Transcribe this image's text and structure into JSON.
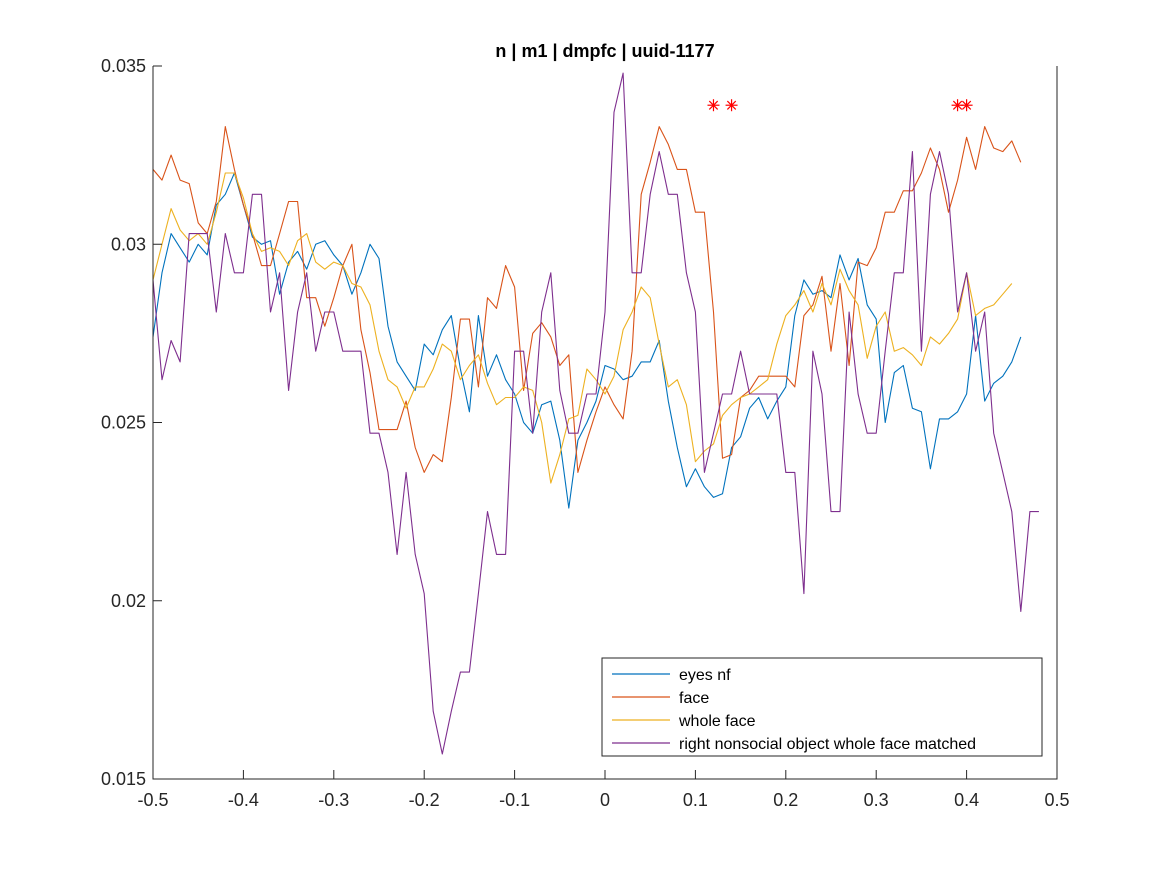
{
  "chart_data": {
    "type": "line",
    "title": "n | m1 | dmpfc | uuid-1177",
    "xlabel": "",
    "ylabel": "",
    "xlim": [
      -0.5,
      0.5
    ],
    "ylim": [
      0.015,
      0.035
    ],
    "xticks": [
      -0.5,
      -0.4,
      -0.3,
      -0.2,
      -0.1,
      0,
      0.1,
      0.2,
      0.3,
      0.4,
      0.5
    ],
    "xtick_labels": [
      "-0.5",
      "-0.4",
      "-0.3",
      "-0.2",
      "-0.1",
      "0",
      "0.1",
      "0.2",
      "0.3",
      "0.4",
      "0.5"
    ],
    "yticks": [
      0.015,
      0.02,
      0.025,
      0.03,
      0.035
    ],
    "ytick_labels": [
      "0.015",
      "0.02",
      "0.025",
      "0.03",
      "0.035"
    ],
    "grid": false,
    "legend_position": "bottom-right",
    "x_start": -0.5,
    "x_step": 0.01,
    "series": [
      {
        "name": "eyes nf",
        "color": "#0072BD",
        "values": [
          0.0274,
          0.0292,
          0.0303,
          0.0299,
          0.0295,
          0.03,
          0.0297,
          0.0311,
          0.0314,
          0.032,
          0.0311,
          0.0302,
          0.03,
          0.0301,
          0.0286,
          0.0295,
          0.0298,
          0.0293,
          0.03,
          0.0301,
          0.0297,
          0.0294,
          0.0286,
          0.0292,
          0.03,
          0.0296,
          0.0277,
          0.0267,
          0.0263,
          0.0259,
          0.0272,
          0.0269,
          0.0276,
          0.028,
          0.0265,
          0.0253,
          0.028,
          0.0263,
          0.0269,
          0.0262,
          0.0258,
          0.025,
          0.0247,
          0.0255,
          0.0256,
          0.0245,
          0.0226,
          0.0245,
          0.025,
          0.0256,
          0.0266,
          0.0265,
          0.0262,
          0.0263,
          0.0267,
          0.0267,
          0.0273,
          0.0256,
          0.0243,
          0.0232,
          0.0237,
          0.0232,
          0.0229,
          0.023,
          0.0243,
          0.0246,
          0.0254,
          0.0257,
          0.0251,
          0.0256,
          0.026,
          0.028,
          0.029,
          0.0286,
          0.0287,
          0.0285,
          0.0297,
          0.029,
          0.0296,
          0.0283,
          0.0279,
          0.025,
          0.0264,
          0.0266,
          0.0254,
          0.0253,
          0.0237,
          0.0251,
          0.0251,
          0.0253,
          0.0258,
          0.028,
          0.0256,
          0.0261,
          0.0263,
          0.0267,
          0.0274
        ]
      },
      {
        "name": "face",
        "color": "#D95319",
        "values": [
          0.0321,
          0.0318,
          0.0325,
          0.0318,
          0.0317,
          0.0306,
          0.0303,
          0.0312,
          0.0333,
          0.0321,
          0.0311,
          0.0303,
          0.0294,
          0.0294,
          0.0303,
          0.0312,
          0.0312,
          0.0285,
          0.0285,
          0.0277,
          0.0285,
          0.0294,
          0.03,
          0.0276,
          0.0264,
          0.0248,
          0.0248,
          0.0248,
          0.0256,
          0.0243,
          0.0236,
          0.0241,
          0.0239,
          0.0257,
          0.0279,
          0.0279,
          0.026,
          0.0285,
          0.0282,
          0.0294,
          0.0288,
          0.0259,
          0.0275,
          0.0278,
          0.0274,
          0.0266,
          0.0269,
          0.0236,
          0.0245,
          0.0253,
          0.026,
          0.0255,
          0.0251,
          0.027,
          0.0314,
          0.0323,
          0.0333,
          0.0328,
          0.0321,
          0.0321,
          0.0309,
          0.0309,
          0.0281,
          0.024,
          0.0241,
          0.0257,
          0.0259,
          0.0263,
          0.0263,
          0.0263,
          0.0263,
          0.026,
          0.028,
          0.0283,
          0.0291,
          0.027,
          0.0289,
          0.0266,
          0.0295,
          0.0294,
          0.0299,
          0.0309,
          0.0309,
          0.0315,
          0.0315,
          0.032,
          0.0327,
          0.0321,
          0.0309,
          0.0318,
          0.033,
          0.0321,
          0.0333,
          0.0327,
          0.0326,
          0.0329,
          0.0323
        ]
      },
      {
        "name": "whole face",
        "color": "#EDB120",
        "values": [
          0.029,
          0.03,
          0.031,
          0.0304,
          0.0301,
          0.0303,
          0.03,
          0.0309,
          0.032,
          0.032,
          0.0313,
          0.0303,
          0.0298,
          0.0299,
          0.0298,
          0.0294,
          0.0301,
          0.0303,
          0.0295,
          0.0293,
          0.0295,
          0.0294,
          0.0289,
          0.0288,
          0.0283,
          0.027,
          0.0262,
          0.026,
          0.0254,
          0.026,
          0.026,
          0.0265,
          0.0272,
          0.027,
          0.0262,
          0.0266,
          0.0269,
          0.0261,
          0.0255,
          0.0257,
          0.0257,
          0.026,
          0.0259,
          0.025,
          0.0233,
          0.0241,
          0.0251,
          0.0252,
          0.0265,
          0.0262,
          0.0258,
          0.0263,
          0.0276,
          0.0281,
          0.0288,
          0.0285,
          0.0272,
          0.026,
          0.0262,
          0.0255,
          0.0239,
          0.0242,
          0.0244,
          0.0252,
          0.0255,
          0.0257,
          0.0258,
          0.026,
          0.0262,
          0.0272,
          0.028,
          0.0283,
          0.0287,
          0.0281,
          0.0289,
          0.0283,
          0.0293,
          0.0287,
          0.0283,
          0.0268,
          0.0277,
          0.0281,
          0.027,
          0.0271,
          0.0269,
          0.0266,
          0.0274,
          0.0272,
          0.0275,
          0.0279,
          0.0292,
          0.028,
          0.0282,
          0.0283,
          0.0286,
          0.0289
        ]
      },
      {
        "name": "right nonsocial object whole face matched",
        "color": "#7E2F8E",
        "values": [
          0.029,
          0.0262,
          0.0273,
          0.0267,
          0.0303,
          0.0303,
          0.0303,
          0.0281,
          0.0303,
          0.0292,
          0.0292,
          0.0314,
          0.0314,
          0.0281,
          0.0292,
          0.0259,
          0.0281,
          0.0292,
          0.027,
          0.0281,
          0.0281,
          0.027,
          0.027,
          0.027,
          0.0247,
          0.0247,
          0.0236,
          0.0213,
          0.0236,
          0.0213,
          0.0202,
          0.0169,
          0.0157,
          0.0169,
          0.018,
          0.018,
          0.0202,
          0.0225,
          0.0213,
          0.0213,
          0.027,
          0.027,
          0.0247,
          0.0281,
          0.0292,
          0.0259,
          0.0247,
          0.0247,
          0.0258,
          0.0258,
          0.0281,
          0.0337,
          0.0348,
          0.0292,
          0.0292,
          0.0314,
          0.0326,
          0.0314,
          0.0314,
          0.0292,
          0.0281,
          0.0236,
          0.0247,
          0.0258,
          0.0258,
          0.027,
          0.0258,
          0.0258,
          0.0258,
          0.0258,
          0.0236,
          0.0236,
          0.0202,
          0.027,
          0.0258,
          0.0225,
          0.0225,
          0.0281,
          0.0258,
          0.0247,
          0.0247,
          0.027,
          0.0292,
          0.0292,
          0.0326,
          0.027,
          0.0314,
          0.0326,
          0.0314,
          0.0281,
          0.0292,
          0.027,
          0.0281,
          0.0247,
          0.0236,
          0.0225,
          0.0197,
          0.0225,
          0.0225
        ]
      }
    ],
    "significance_markers": {
      "color": "#FF0000",
      "symbol": "*",
      "y": 0.0339,
      "x": [
        0.12,
        0.14,
        0.39,
        0.4
      ]
    }
  }
}
